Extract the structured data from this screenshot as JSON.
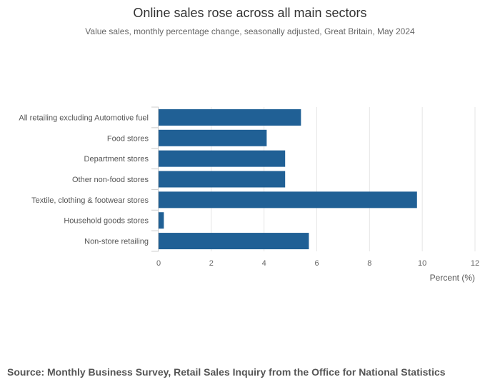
{
  "colors": {
    "bar": "#206095",
    "grid": "#e6e6e6",
    "axis": "#cccccc",
    "label": "#555555"
  },
  "chart_data": {
    "type": "bar",
    "orientation": "horizontal",
    "title": "Online sales rose across all main sectors",
    "subtitle": "Value sales, monthly percentage change, seasonally adjusted, Great Britain, May 2024",
    "categories": [
      "All retailing excluding Automotive fuel",
      "Food stores",
      "Department stores",
      "Other non-food stores",
      "Textile, clothing & footwear stores",
      "Household goods stores",
      "Non-store retailing"
    ],
    "values": [
      5.4,
      4.1,
      4.8,
      4.8,
      9.8,
      0.2,
      5.7
    ],
    "xlabel": "Percent (%)",
    "ylabel": "",
    "xlim": [
      0,
      12
    ],
    "xticks": [
      0,
      2,
      4,
      6,
      8,
      10,
      12
    ],
    "grid": true,
    "source": "Source: Monthly Business Survey, Retail Sales Inquiry from the Office for National Statistics"
  }
}
